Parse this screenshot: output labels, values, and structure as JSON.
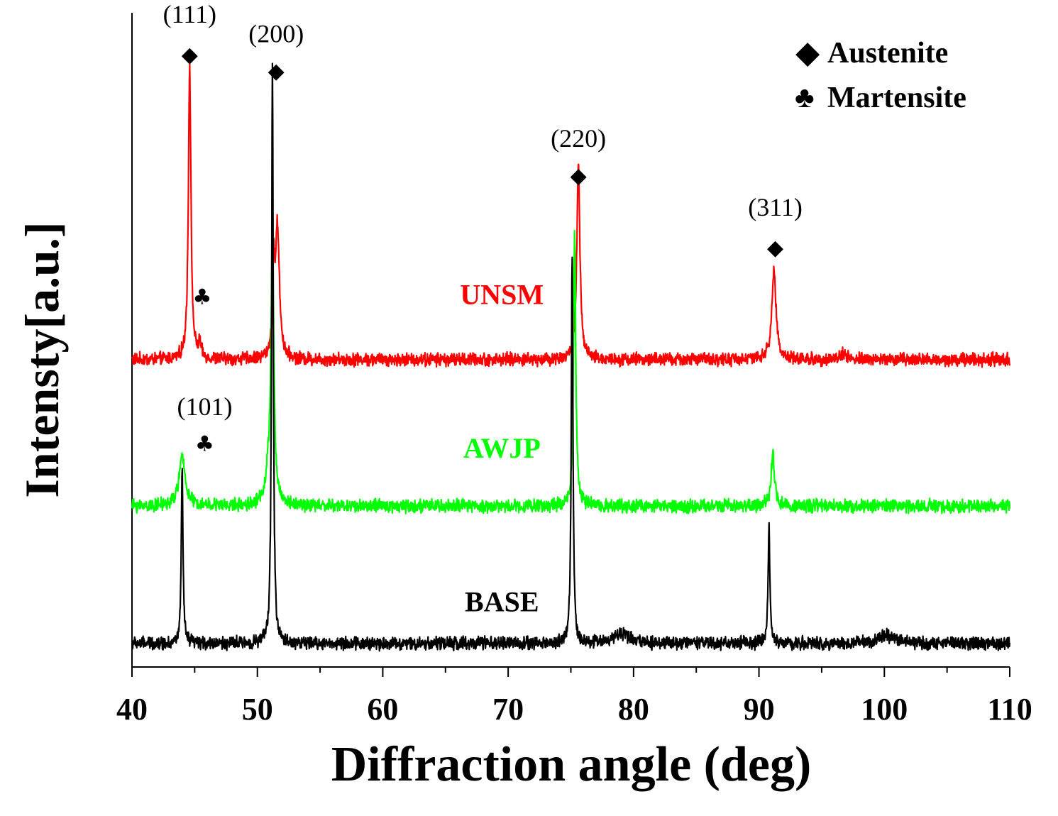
{
  "chart_data": {
    "type": "line",
    "title": "",
    "xlabel": "Diffraction angle (deg)",
    "ylabel": "Intensty[a.u.]",
    "xlim": [
      40,
      110
    ],
    "xticks": [
      40,
      50,
      60,
      70,
      80,
      90,
      100,
      110
    ],
    "yticks_shown": false,
    "legend": {
      "placement": "top-right",
      "entries": [
        {
          "symbol": "◆",
          "label": "Austenite"
        },
        {
          "symbol": "♣",
          "label": "Martensite"
        }
      ]
    },
    "series": [
      {
        "name": "UNSM",
        "color": "#ff0000",
        "baseline": 0.47,
        "peaks": [
          {
            "x": 44.6,
            "height": 0.45,
            "width": 0.18
          },
          {
            "x": 45.4,
            "height": 0.02,
            "width": 0.2
          },
          {
            "x": 51.6,
            "height": 0.2,
            "width": 0.28
          },
          {
            "x": 51.3,
            "height": 0.12,
            "width": 0.15
          },
          {
            "x": 75.6,
            "height": 0.295,
            "width": 0.22
          },
          {
            "x": 91.2,
            "height": 0.135,
            "width": 0.3
          },
          {
            "x": 96.8,
            "height": 0.01,
            "width": 0.4
          }
        ]
      },
      {
        "name": "AWJP",
        "color": "#00ff00",
        "baseline": 0.246,
        "peaks": [
          {
            "x": 44.0,
            "height": 0.074,
            "width": 0.45
          },
          {
            "x": 51.2,
            "height": 0.38,
            "width": 0.18
          },
          {
            "x": 51.0,
            "height": 0.06,
            "width": 0.5
          },
          {
            "x": 75.3,
            "height": 0.42,
            "width": 0.16
          },
          {
            "x": 91.1,
            "height": 0.08,
            "width": 0.25
          }
        ]
      },
      {
        "name": "BASE",
        "color": "#000000",
        "baseline": 0.036,
        "peaks": [
          {
            "x": 44.0,
            "height": 0.265,
            "width": 0.12
          },
          {
            "x": 51.2,
            "height": 0.88,
            "width": 0.12
          },
          {
            "x": 75.1,
            "height": 0.585,
            "width": 0.12
          },
          {
            "x": 90.8,
            "height": 0.175,
            "width": 0.13
          },
          {
            "x": 79.0,
            "height": 0.015,
            "width": 1.2
          },
          {
            "x": 100.2,
            "height": 0.012,
            "width": 1.2
          }
        ]
      }
    ],
    "annotations": [
      {
        "text": "(111)",
        "x": 44.6,
        "y": 0.985,
        "marker": "◆",
        "marker_y": 0.925
      },
      {
        "text": "(200)",
        "x": 51.5,
        "y": 0.955,
        "marker": "◆",
        "marker_y": 0.9
      },
      {
        "text": "(220)",
        "x": 75.6,
        "y": 0.795,
        "marker": "◆",
        "marker_y": 0.74
      },
      {
        "text": "(311)",
        "x": 91.3,
        "y": 0.69,
        "marker": "◆",
        "marker_y": 0.63
      },
      {
        "text": "(101)",
        "x": 45.8,
        "y": 0.385,
        "marker": "♣",
        "marker_y": 0.33
      },
      {
        "text": "",
        "x": 45.6,
        "y": 0.0,
        "marker": "♣",
        "marker_y": 0.555
      }
    ],
    "series_labels": [
      {
        "text": "UNSM",
        "x": 69.5,
        "y": 0.555,
        "color": "#ff0000"
      },
      {
        "text": "AWJP",
        "x": 69.5,
        "y": 0.32,
        "color": "#00ff00"
      },
      {
        "text": "BASE",
        "x": 69.5,
        "y": 0.085,
        "color": "#000000"
      }
    ]
  }
}
